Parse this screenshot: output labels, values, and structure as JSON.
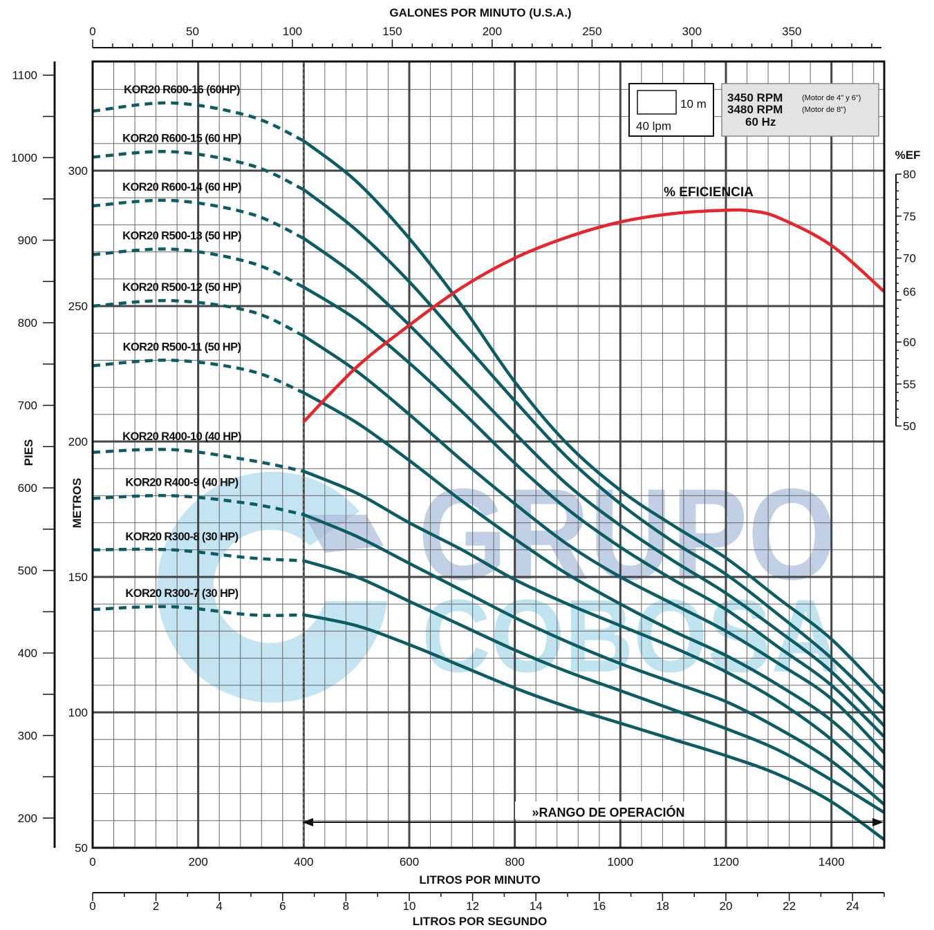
{
  "titles": {
    "top_axis": "GALONES POR MINUTO (U.S.A.)",
    "bottom_axis_lpm": "LITROS POR MINUTO",
    "bottom_axis_lps": "LITROS POR SEGUNDO",
    "left_axis_feet": "PIES",
    "left_axis_meters": "METROS",
    "right_axis_eff": "%EF",
    "efficiency_label": "% EFICIENCIA",
    "operating_range": "»RANGO DE OPERACIÓN"
  },
  "scale_box": {
    "meters": "10 m",
    "lpm": "40 lpm"
  },
  "rpm_box": {
    "rpm1": "3450 RPM",
    "note1": "(Motor de 4\" y 6\")",
    "rpm2": "3480 RPM",
    "note2": "(Motor de 8\")",
    "hz": "60 Hz"
  },
  "watermark": {
    "line1": "GRUPO",
    "line2": "COBOSA"
  },
  "colors": {
    "curve": "#0b5c63",
    "efficiency": "#e8252b",
    "grid_major": "#444444",
    "grid_minor": "#666666",
    "watermark_blue": "#9fb4d6",
    "watermark_cyan": "#9ad2e6"
  },
  "chart_data": {
    "type": "line",
    "x_unit": "LITROS POR MINUTO",
    "xlim": [
      0,
      1500
    ],
    "ylim_m": [
      50,
      335
    ],
    "ylim_eff": [
      50,
      80
    ],
    "x_ticks_lpm": [
      "0",
      "200",
      "400",
      "600",
      "800",
      "1000",
      "1200",
      "1400"
    ],
    "y_ticks_m": [
      "50",
      "100",
      "150",
      "200",
      "250",
      "300"
    ],
    "y_ticks_ft": [
      "200",
      "300",
      "400",
      "500",
      "600",
      "700",
      "800",
      "900",
      "1000",
      "1100"
    ],
    "y_ticks_eff": [
      "50",
      "55",
      "60",
      "66",
      "70",
      "75",
      "80"
    ],
    "x_ticks_gpm": [
      "0",
      "50",
      "100",
      "150",
      "200",
      "250",
      "300",
      "350"
    ],
    "x_ticks_lps": [
      "0",
      "2",
      "4",
      "6",
      "8",
      "10",
      "12",
      "14",
      "16",
      "18",
      "20",
      "22",
      "24"
    ],
    "operating_range_lpm": [
      400,
      1500
    ],
    "series": [
      {
        "name": "KOR20 R600-16 (60HP)",
        "x": [
          0,
          150,
          300,
          400,
          500,
          600,
          700,
          800,
          900,
          1000,
          1100,
          1200,
          1300,
          1400,
          1500
        ],
        "y": [
          322,
          325,
          320,
          311,
          296,
          275,
          250,
          222,
          199,
          182,
          169,
          157,
          142,
          127,
          107
        ]
      },
      {
        "name": "KOR20 R600-15 (60 HP)",
        "x": [
          0,
          150,
          300,
          400,
          500,
          600,
          700,
          800,
          900,
          1000,
          1100,
          1200,
          1300,
          1400,
          1500
        ],
        "y": [
          305,
          307,
          302,
          293,
          278,
          259,
          237,
          215,
          194,
          177,
          163,
          151,
          136,
          120,
          101
        ]
      },
      {
        "name": "KOR20 R600-14 (60 HP)",
        "x": [
          0,
          150,
          300,
          400,
          500,
          600,
          700,
          800,
          900,
          1000,
          1100,
          1200,
          1300,
          1400,
          1500
        ],
        "y": [
          287,
          289,
          284,
          275,
          261,
          243,
          223,
          203,
          184,
          169,
          156,
          144,
          130,
          115,
          95
        ]
      },
      {
        "name": "KOR20 R500-13 (50 HP)",
        "x": [
          0,
          150,
          300,
          400,
          500,
          600,
          700,
          800,
          900,
          1000,
          1100,
          1200,
          1300,
          1400,
          1500
        ],
        "y": [
          269,
          271,
          266,
          257,
          245,
          229,
          211,
          192,
          175,
          161,
          149,
          138,
          124,
          110,
          91
        ]
      },
      {
        "name": "KOR20 R500-12 (50 HP)",
        "x": [
          0,
          150,
          300,
          400,
          500,
          600,
          700,
          800,
          900,
          1000,
          1100,
          1200,
          1300,
          1400,
          1500
        ],
        "y": [
          250,
          252,
          248,
          239,
          226,
          210,
          193,
          177,
          162,
          150,
          140,
          130,
          118,
          105,
          85
        ]
      },
      {
        "name": "KOR20 R500-11 (50 HP)",
        "x": [
          0,
          150,
          300,
          400,
          500,
          600,
          700,
          800,
          900,
          1000,
          1100,
          1200,
          1300,
          1400,
          1500
        ],
        "y": [
          228,
          230,
          226,
          218,
          207,
          193,
          178,
          164,
          151,
          140,
          130,
          121,
          110,
          97,
          79
        ]
      },
      {
        "name": "KOR20 R400-10 (40 HP)",
        "x": [
          0,
          150,
          300,
          400,
          500,
          600,
          700,
          800,
          900,
          1000,
          1100,
          1200,
          1300,
          1400,
          1500
        ],
        "y": [
          196,
          197,
          193,
          189,
          181,
          170,
          160,
          149,
          140,
          132,
          124,
          115,
          104,
          90,
          72
        ]
      },
      {
        "name": "KOR20 R400-9 (40 HP)",
        "x": [
          0,
          150,
          300,
          400,
          500,
          600,
          700,
          800,
          900,
          1000,
          1100,
          1200,
          1300,
          1400,
          1500
        ],
        "y": [
          179,
          180,
          177,
          173,
          165,
          155,
          145,
          135,
          126,
          118,
          111,
          104,
          94,
          82,
          66
        ]
      },
      {
        "name": "KOR20 R300-8 (30 HP)",
        "x": [
          0,
          150,
          300,
          400,
          500,
          600,
          700,
          800,
          900,
          1000,
          1100,
          1200,
          1300,
          1400,
          1500
        ],
        "y": [
          160,
          160,
          157,
          156,
          150,
          141,
          132,
          123,
          115,
          108,
          101,
          94,
          86,
          75,
          63
        ]
      },
      {
        "name": "KOR20 R300-7 (30 HP)",
        "x": [
          0,
          150,
          300,
          400,
          500,
          600,
          700,
          800,
          900,
          1000,
          1100,
          1200,
          1300,
          1400,
          1500
        ],
        "y": [
          138,
          139,
          136,
          136,
          132,
          125,
          117,
          109,
          102,
          96,
          90,
          84,
          77,
          67,
          53
        ]
      }
    ],
    "efficiency": {
      "name": "% EFICIENCIA",
      "x": [
        400,
        500,
        600,
        700,
        800,
        900,
        1000,
        1100,
        1200,
        1250,
        1300,
        1400,
        1500
      ],
      "y": [
        50.5,
        57,
        62,
        66.5,
        70,
        72.5,
        74.3,
        75.3,
        75.7,
        75.6,
        74.8,
        71.5,
        66
      ]
    }
  }
}
